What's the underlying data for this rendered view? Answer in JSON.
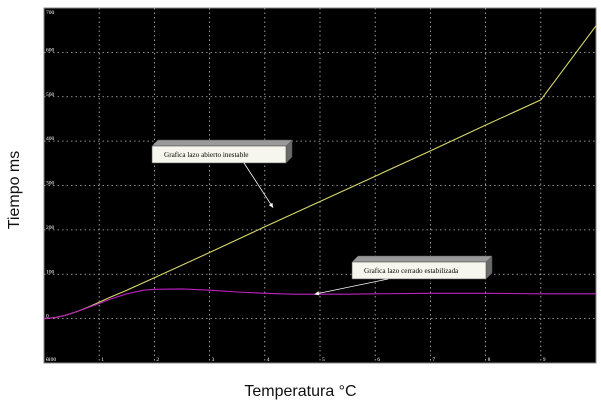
{
  "chart_data": {
    "type": "line",
    "xlabel": "Temperatura °C",
    "ylabel": "Tiempo ms",
    "xlim": [
      0,
      10
    ],
    "ylim": [
      -100,
      700
    ],
    "grid": true,
    "x_ticks": [
      "0",
      "1",
      "2",
      "3",
      "4",
      "5",
      "6",
      "7",
      "8",
      "9",
      "10"
    ],
    "y_ticks": [
      "700",
      "600",
      "500",
      "400",
      "300",
      "200",
      "100",
      "0",
      "-100"
    ],
    "series": [
      {
        "color": "#d8d86a",
        "x": [
          0,
          0.2,
          0.4,
          0.6,
          0.8,
          1.0,
          1.2,
          1.5,
          2,
          3,
          4,
          5,
          6,
          7,
          8,
          9,
          10
        ],
        "y": [
          0,
          2,
          8,
          16,
          26,
          37,
          48,
          64,
          92,
          149,
          207,
          264,
          321,
          378,
          436,
          493,
          660
        ]
      },
      {
        "color": "#c020c0",
        "x": [
          0,
          0.2,
          0.4,
          0.6,
          0.8,
          1.0,
          1.2,
          1.5,
          1.8,
          2.0,
          2.5,
          3.0,
          3.5,
          4.0,
          4.5,
          5.0,
          5.5,
          6,
          7,
          8,
          9,
          10
        ],
        "y": [
          0,
          2,
          8,
          16,
          25,
          34,
          44,
          56,
          64,
          66,
          67,
          64,
          60,
          57,
          55,
          55,
          55,
          56,
          57,
          57,
          56,
          56
        ]
      }
    ],
    "annotations": [
      {
        "text": "Grafica lazo abierto inestable",
        "target_x": 4.15,
        "target_y": 250
      },
      {
        "text": "Grafica lazo cerrado estabilizada",
        "target_x": 4.9,
        "target_y": 55
      }
    ]
  }
}
